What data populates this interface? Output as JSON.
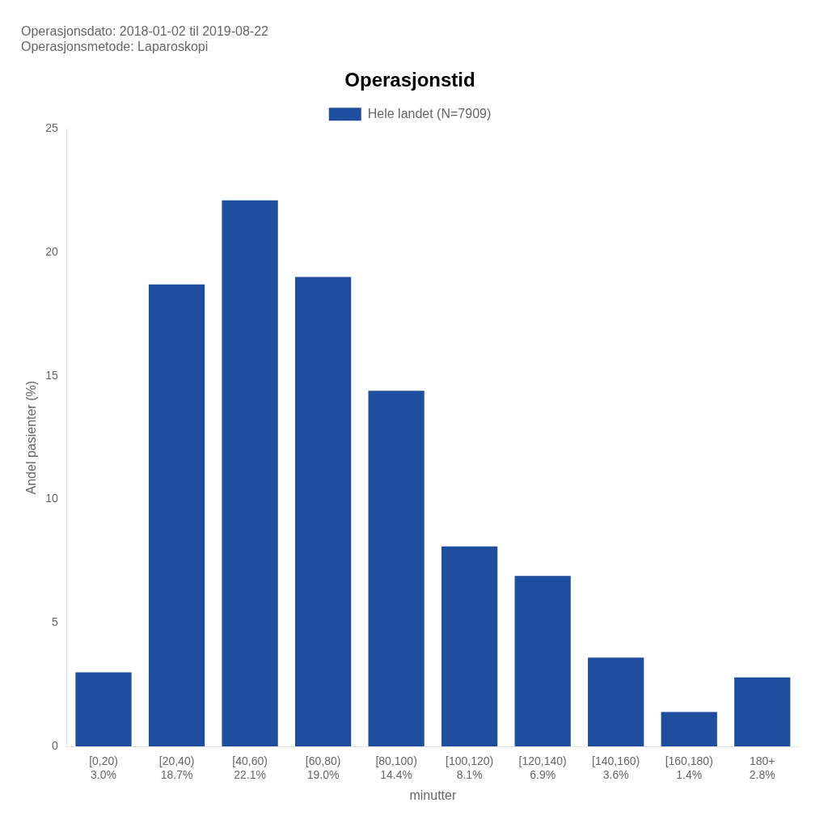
{
  "chart_data": {
    "type": "bar",
    "title": "Operasjonstid",
    "subtitle": [
      "Operasjonsdato: 2018-01-02 til 2019-08-22",
      "Operasjonsmetode: Laparoskopi"
    ],
    "xlabel": "minutter",
    "ylabel": "Andel pasienter (%)",
    "categories": [
      [
        "[0,20)",
        "3.0%"
      ],
      [
        "[20,40)",
        "18.7%"
      ],
      [
        "[40,60)",
        "22.1%"
      ],
      [
        "[60,80)",
        "19.0%"
      ],
      [
        "[80,100)",
        "14.4%"
      ],
      [
        "[100,120)",
        "8.1%"
      ],
      [
        "[120,140)",
        "6.9%"
      ],
      [
        "[140,160)",
        "3.6%"
      ],
      [
        "[160,180)",
        "1.4%"
      ],
      [
        "180+",
        "2.8%"
      ]
    ],
    "series": [
      {
        "name": "Hele landet (N=7909)",
        "color": "#1f4e9e",
        "values": [
          3.0,
          18.7,
          22.1,
          19.0,
          14.4,
          8.1,
          6.9,
          3.6,
          1.4,
          2.8
        ]
      }
    ],
    "ylim": [
      0,
      25
    ],
    "yticks": [
      0,
      5,
      10,
      15,
      20,
      25
    ],
    "grid": false,
    "legend": "top"
  }
}
